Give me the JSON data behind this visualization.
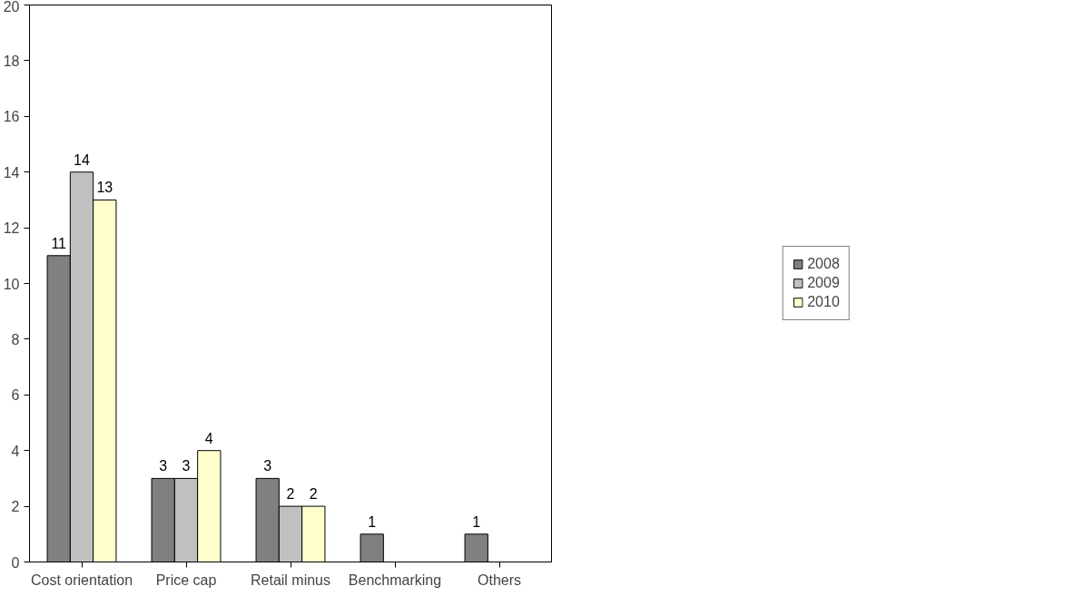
{
  "chart_data": {
    "type": "bar",
    "categories": [
      "Cost orientation",
      "Price cap",
      "Retail minus",
      "Benchmarking",
      "Others"
    ],
    "series": [
      {
        "name": "2008",
        "color": "#808080",
        "values": [
          11,
          3,
          3,
          1,
          1
        ]
      },
      {
        "name": "2009",
        "color": "#c0c0c0",
        "values": [
          14,
          3,
          2,
          null,
          null
        ]
      },
      {
        "name": "2010",
        "color": "#ffffcc",
        "values": [
          13,
          4,
          2,
          null,
          null
        ]
      }
    ],
    "ylim": [
      0,
      20
    ],
    "yticks": [
      0,
      2,
      4,
      6,
      8,
      10,
      12,
      14,
      16,
      18,
      20
    ],
    "grid": false,
    "legend": "right",
    "data_labels": true
  }
}
